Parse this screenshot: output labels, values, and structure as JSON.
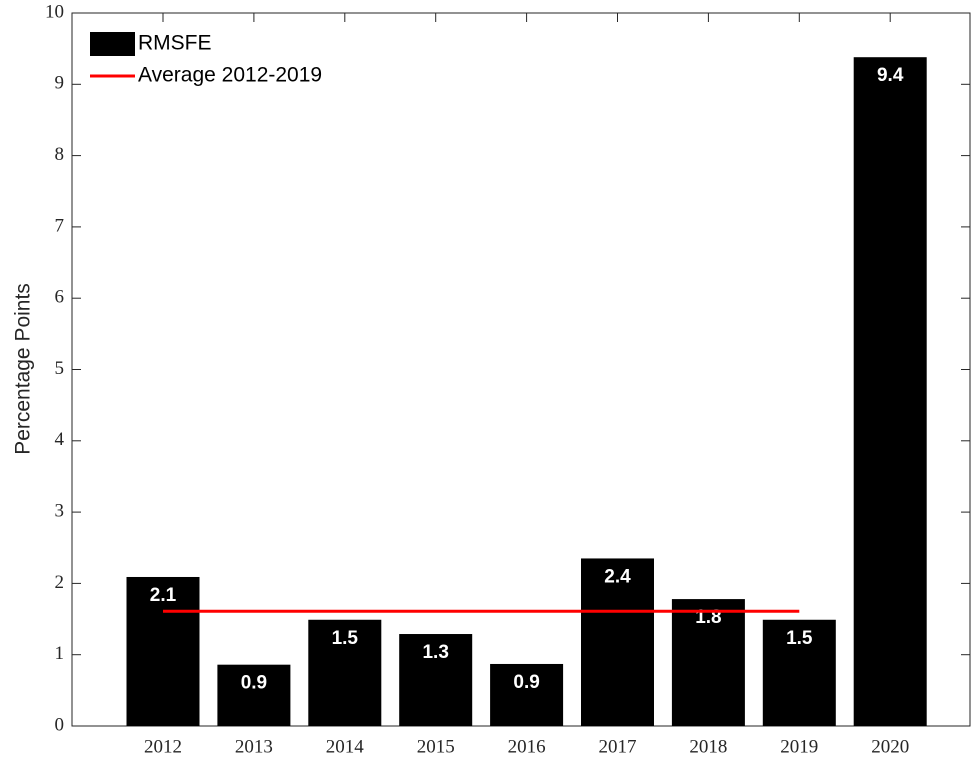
{
  "chart_data": {
    "type": "bar",
    "y_label": "Percentage Points",
    "categories": [
      "2012",
      "2013",
      "2014",
      "2015",
      "2016",
      "2017",
      "2018",
      "2019",
      "2020"
    ],
    "series": [
      {
        "name": "RMSFE",
        "type": "bar",
        "color": "#000000",
        "values": [
          2.09,
          0.86,
          1.49,
          1.29,
          0.87,
          2.35,
          1.78,
          1.49,
          9.38
        ],
        "value_labels": [
          "2.1",
          "0.9",
          "1.5",
          "1.3",
          "0.9",
          "2.4",
          "1.8",
          "1.5",
          "9.4"
        ]
      },
      {
        "name": "Average 2012-2019",
        "type": "line",
        "color": "#ff0000",
        "values": [
          1.61,
          1.61,
          1.61,
          1.61,
          1.61,
          1.61,
          1.61,
          1.61,
          null
        ]
      }
    ],
    "ylim": [
      0,
      10
    ],
    "yticks": [
      0,
      1,
      2,
      3,
      4,
      5,
      6,
      7,
      8,
      9,
      10
    ],
    "legend": "top-left"
  }
}
